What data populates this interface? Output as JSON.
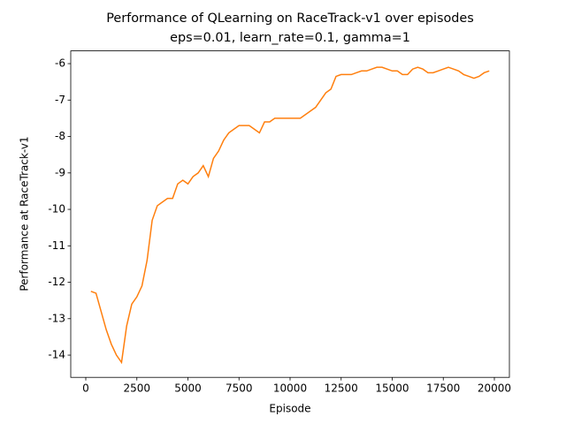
{
  "chart_data": {
    "type": "line",
    "title": "Performance of QLearning on RaceTrack-v1 over episodes",
    "subtitle": "eps=0.01, learn_rate=0.1, gamma=1",
    "xlabel": "Episode",
    "ylabel": "Performance at RaceTrack-v1",
    "x": [
      250,
      500,
      750,
      1000,
      1250,
      1500,
      1750,
      2000,
      2250,
      2500,
      2750,
      3000,
      3250,
      3500,
      3750,
      4000,
      4250,
      4500,
      4750,
      5000,
      5250,
      5500,
      5750,
      6000,
      6250,
      6500,
      6750,
      7000,
      7250,
      7500,
      7750,
      8000,
      8250,
      8500,
      8750,
      9000,
      9250,
      9500,
      9750,
      10000,
      10250,
      10500,
      10750,
      11000,
      11250,
      11500,
      11750,
      12000,
      12250,
      12500,
      12750,
      13000,
      13250,
      13500,
      13750,
      14000,
      14250,
      14500,
      14750,
      15000,
      15250,
      15500,
      15750,
      16000,
      16250,
      16500,
      16750,
      17000,
      17250,
      17500,
      17750,
      18000,
      18250,
      18500,
      18750,
      19000,
      19250,
      19500,
      19750
    ],
    "series": [
      {
        "color": "#ff7f0e",
        "values": [
          -12.25,
          -12.3,
          -12.8,
          -13.3,
          -13.7,
          -14.0,
          -14.2,
          -13.2,
          -12.6,
          -12.4,
          -12.1,
          -11.4,
          -10.3,
          -9.9,
          -9.8,
          -9.7,
          -9.7,
          -9.3,
          -9.2,
          -9.3,
          -9.1,
          -9.0,
          -8.8,
          -9.1,
          -8.6,
          -8.4,
          -8.1,
          -7.9,
          -7.8,
          -7.7,
          -7.7,
          -7.7,
          -7.8,
          -7.9,
          -7.6,
          -7.6,
          -7.5,
          -7.5,
          -7.5,
          -7.5,
          -7.5,
          -7.5,
          -7.4,
          -7.3,
          -7.2,
          -7.0,
          -6.8,
          -6.7,
          -6.35,
          -6.3,
          -6.3,
          -6.3,
          -6.25,
          -6.2,
          -6.2,
          -6.15,
          -6.1,
          -6.1,
          -6.15,
          -6.2,
          -6.2,
          -6.3,
          -6.3,
          -6.15,
          -6.1,
          -6.15,
          -6.25,
          -6.25,
          -6.2,
          -6.15,
          -6.1,
          -6.15,
          -6.2,
          -6.3,
          -6.35,
          -6.4,
          -6.35,
          -6.25,
          -6.2
        ]
      }
    ],
    "xlim": [
      -736,
      20736
    ],
    "ylim": [
      -14.61,
      -5.65
    ],
    "xticks": [
      0,
      2500,
      5000,
      7500,
      10000,
      12500,
      15000,
      17500,
      20000
    ],
    "yticks": [
      -14,
      -13,
      -12,
      -11,
      -10,
      -9,
      -8,
      -7,
      -6
    ]
  }
}
